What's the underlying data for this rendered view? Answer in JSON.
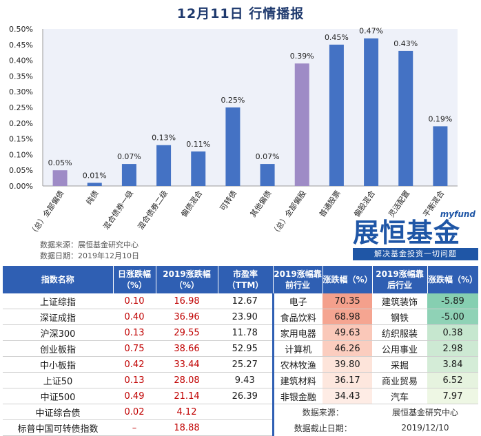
{
  "title": "12月11日  行情播报",
  "chart_data": {
    "type": "bar",
    "categories": [
      "（总）全部偏债",
      "纯债",
      "混合债券一级",
      "混合债券二级",
      "偏债混合",
      "可转债",
      "其他偏债",
      "（总）全部偏股",
      "普通股票",
      "偏股混合",
      "灵活配置",
      "平衡混合"
    ],
    "values": [
      0.05,
      0.01,
      0.07,
      0.13,
      0.11,
      0.25,
      0.07,
      0.39,
      0.45,
      0.47,
      0.43,
      0.19
    ],
    "value_labels": [
      "0.05%",
      "0.01%",
      "0.07%",
      "0.13%",
      "0.11%",
      "0.25%",
      "0.07%",
      "0.39%",
      "0.45%",
      "0.47%",
      "0.43%",
      "0.19%"
    ],
    "highlight_indices": [
      0,
      7
    ],
    "ylim": [
      0,
      0.5
    ],
    "yticks": [
      "0.00%",
      "0.05%",
      "0.10%",
      "0.15%",
      "0.20%",
      "0.25%",
      "0.30%",
      "0.35%",
      "0.40%",
      "0.45%",
      "0.50%"
    ],
    "colors": {
      "bar": "#4472c4",
      "highlight": "#9e8bc6"
    },
    "grid": false
  },
  "notes": {
    "source": "数据来源：展恒基金研究中心",
    "date": "数据日期：2019年12月10日"
  },
  "logo": {
    "brand_en": "myfund",
    "brand_cn": "展恒基金",
    "slogan": "解决基金投资一切问题"
  },
  "table": {
    "headers": [
      "指数名称",
      "日涨跌幅（%）",
      "2019涨跌幅（%）",
      "市盈率（TTM）",
      "2019涨幅靠前行业",
      "涨跌幅（%）",
      "2019涨幅靠后行业",
      "涨跌幅（%）"
    ],
    "rows": [
      {
        "name": "上证综指",
        "day": "0.10",
        "ytd": "16.98",
        "pe": "12.67",
        "top": "电子",
        "top_chg": "70.35",
        "bot": "建筑装饰",
        "bot_chg": "-5.89"
      },
      {
        "name": "深证成指",
        "day": "0.40",
        "ytd": "36.96",
        "pe": "23.90",
        "top": "食品饮料",
        "top_chg": "68.98",
        "bot": "钢铁",
        "bot_chg": "-5.00"
      },
      {
        "name": "沪深300",
        "day": "0.13",
        "ytd": "29.55",
        "pe": "11.78",
        "top": "家用电器",
        "top_chg": "49.63",
        "bot": "纺织服装",
        "bot_chg": "0.38"
      },
      {
        "name": "创业板指",
        "day": "0.75",
        "ytd": "38.66",
        "pe": "52.95",
        "top": "计算机",
        "top_chg": "46.26",
        "bot": "公用事业",
        "bot_chg": "2.98"
      },
      {
        "name": "中小板指",
        "day": "0.42",
        "ytd": "33.44",
        "pe": "25.27",
        "top": "农林牧渔",
        "top_chg": "39.80",
        "bot": "采掘",
        "bot_chg": "3.84"
      },
      {
        "name": "上证50",
        "day": "0.13",
        "ytd": "28.08",
        "pe": "9.43",
        "top": "建筑材料",
        "top_chg": "36.17",
        "bot": "商业贸易",
        "bot_chg": "6.52"
      },
      {
        "name": "中证500",
        "day": "0.49",
        "ytd": "21.14",
        "pe": "26.39",
        "top": "非银金融",
        "top_chg": "34.43",
        "bot": "汽车",
        "bot_chg": "7.97"
      },
      {
        "name": "中证综合债",
        "day": "0.02",
        "ytd": "4.12",
        "pe": "",
        "foot_label": "数据来源：",
        "foot_value": "展恒基金研究中心"
      },
      {
        "name": "标普中国可转债指数",
        "day": "–",
        "ytd": "18.88",
        "pe": "",
        "foot_label": "数据截止日期：",
        "foot_value": "2019/12/10"
      }
    ],
    "heat_colors": {
      "top": [
        "#f4a08c",
        "#f5a591",
        "#fac8b9",
        "#fbcdbf",
        "#fde4da",
        "#fde7de",
        "#feece5"
      ],
      "bot": [
        "#86cfb1",
        "#8fd2b6",
        "#c6e7cf",
        "#cde9d3",
        "#d4ecd7",
        "#e6f3df",
        "#eef7e4"
      ]
    }
  }
}
